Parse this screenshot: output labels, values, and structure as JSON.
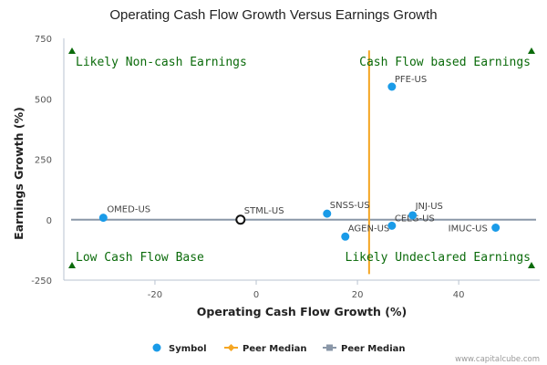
{
  "chart_data": {
    "type": "scatter",
    "title": "Operating Cash Flow Growth Versus Earnings Growth",
    "xlabel": "Operating Cash Flow Growth (%)",
    "ylabel": "Earnings Growth (%)",
    "xlim": [
      -38,
      56
    ],
    "ylim": [
      -250,
      750
    ],
    "xticks": [
      -20,
      0,
      20,
      40
    ],
    "yticks": [
      -250,
      0,
      250,
      500,
      750
    ],
    "grid": false,
    "points": [
      {
        "label": "PFE-US",
        "x": 26.8,
        "y": 550,
        "color": "#1a9be8"
      },
      {
        "label": "OMED-US",
        "x": -30.2,
        "y": 8,
        "color": "#1a9be8"
      },
      {
        "label": "SNSS-US",
        "x": 14.0,
        "y": 25,
        "color": "#1a9be8"
      },
      {
        "label": "AGEN-US",
        "x": 17.6,
        "y": -70,
        "color": "#1a9be8"
      },
      {
        "label": "CELG-US",
        "x": 26.8,
        "y": -25,
        "color": "#1a9be8"
      },
      {
        "label": "JNJ-US",
        "x": 30.9,
        "y": 18,
        "color": "#1a9be8"
      },
      {
        "label": "IMUC-US",
        "x": 47.3,
        "y": -33,
        "color": "#1a9be8"
      }
    ],
    "highlight": {
      "label": "STML-US",
      "x": -3.1,
      "y": 0
    },
    "peer_median_x": 22.3,
    "peer_median_y": 0,
    "quadrant_labels": {
      "top_left": "Likely Non-cash Earnings",
      "top_right": "Cash Flow based Earnings",
      "bottom_left": "Low Cash Flow Base",
      "bottom_right": "Likely Undeclared Earnings"
    },
    "legend": {
      "placement": "bottom",
      "items": [
        {
          "label": "Symbol",
          "color": "#1a9be8",
          "marker": "circle"
        },
        {
          "label": "Peer Median",
          "color": "#f5a623",
          "marker": "diamond"
        },
        {
          "label": "Peer Median",
          "color": "#8a97a8",
          "marker": "square"
        }
      ]
    },
    "credit": "www.capitalcube.com"
  }
}
